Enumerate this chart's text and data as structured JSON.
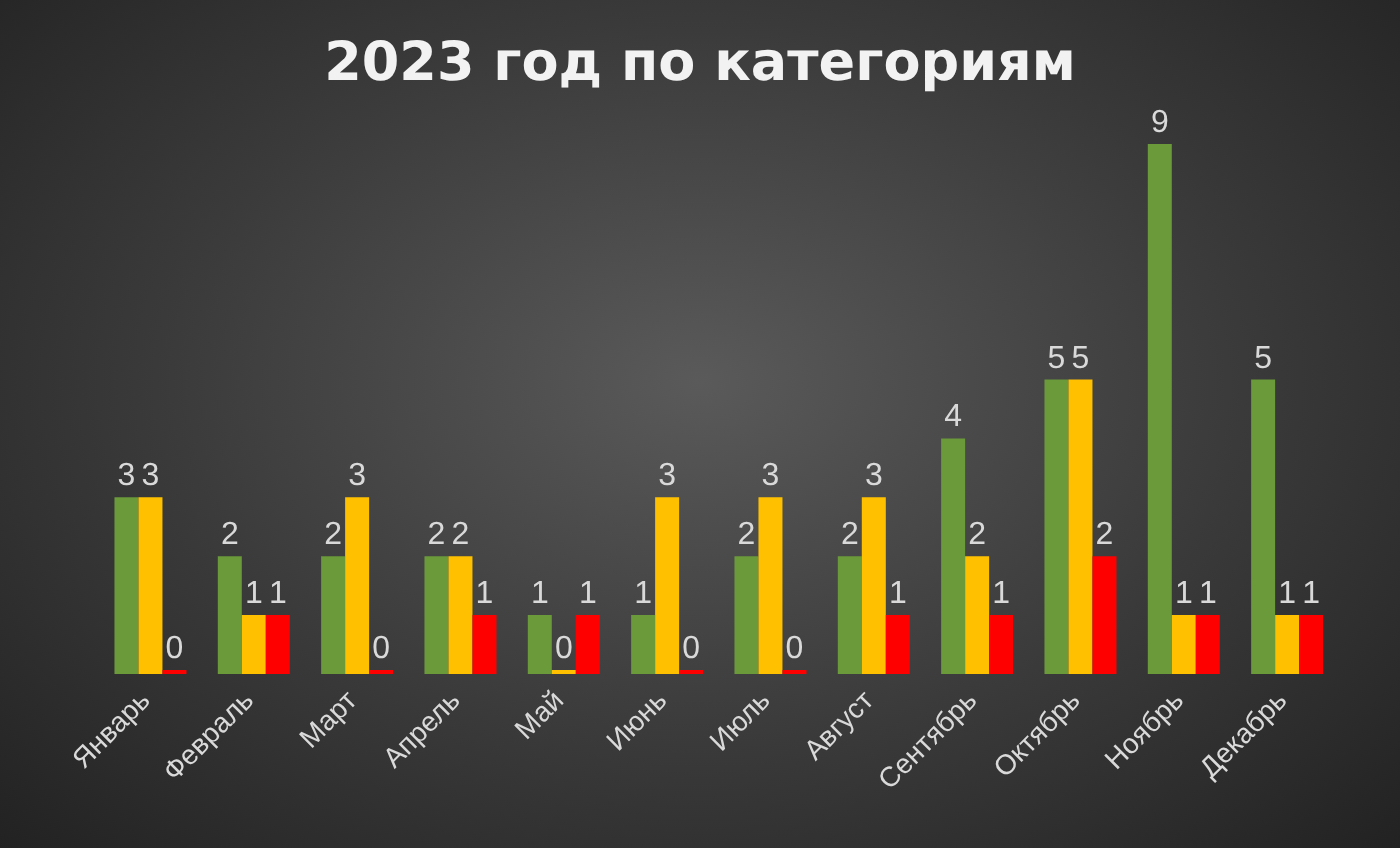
{
  "chart_data": {
    "type": "bar",
    "title": "2023 год по категориям",
    "categories": [
      "Январь",
      "Февраль",
      "Март",
      "Апрель",
      "Май",
      "Июнь",
      "Июль",
      "Август",
      "Сентябрь",
      "Октябрь",
      "Ноябрь",
      "Декабрь"
    ],
    "series": [
      {
        "color": "#6b9a3b",
        "values": [
          3,
          2,
          2,
          2,
          1,
          1,
          2,
          2,
          4,
          5,
          9,
          5
        ]
      },
      {
        "color": "#ffc000",
        "values": [
          3,
          1,
          3,
          2,
          0,
          3,
          3,
          3,
          2,
          5,
          1,
          1
        ]
      },
      {
        "color": "#ff0000",
        "values": [
          0,
          1,
          0,
          1,
          1,
          0,
          0,
          1,
          1,
          2,
          1,
          1
        ]
      }
    ],
    "data_labels": true,
    "grid": false,
    "legend": false
  }
}
